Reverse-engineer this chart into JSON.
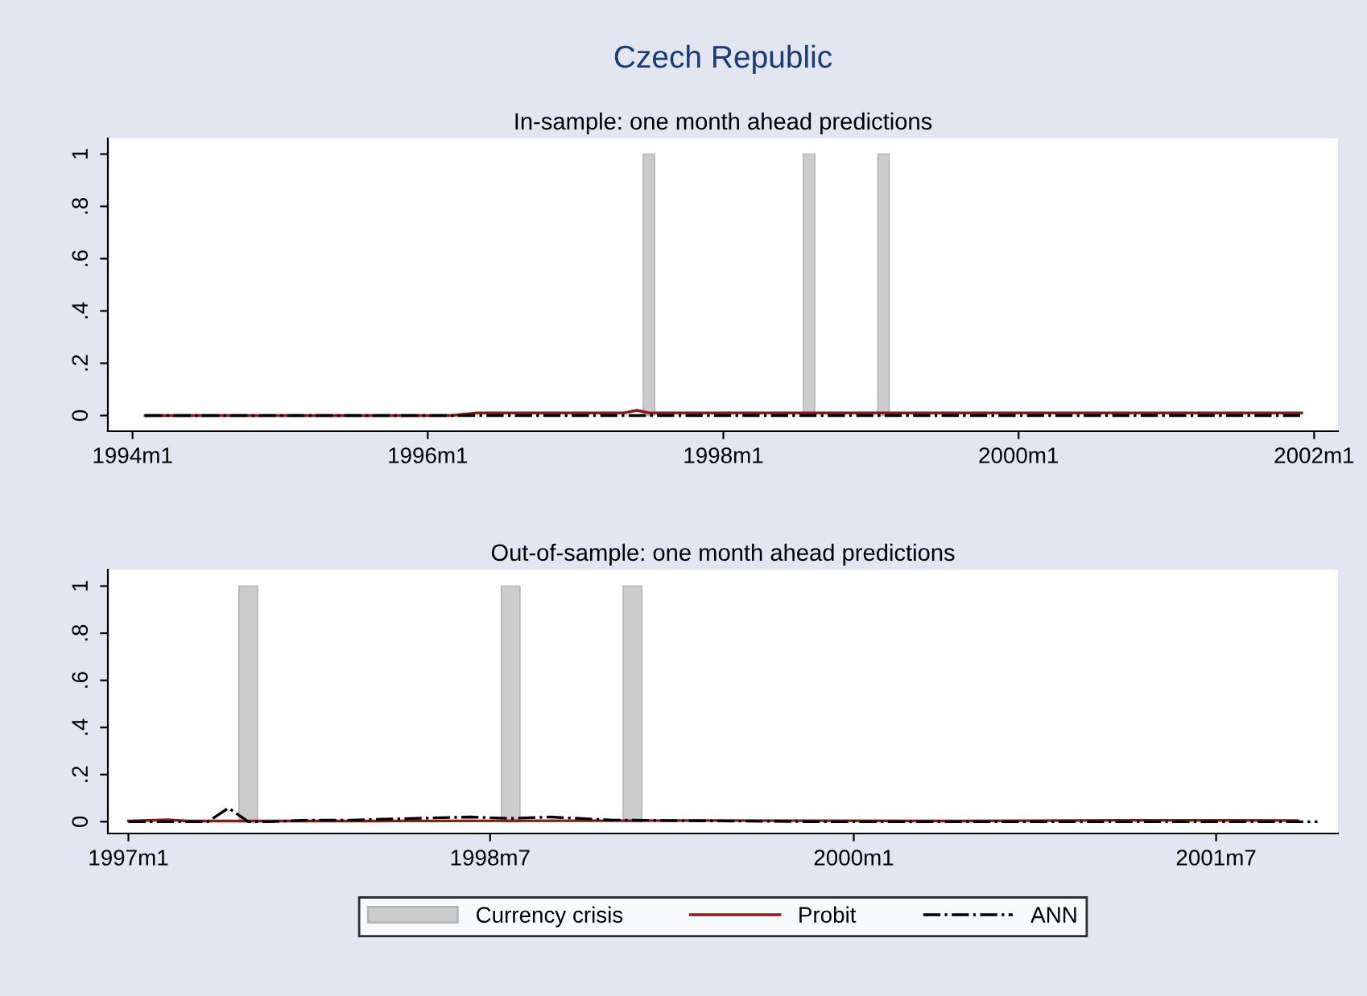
{
  "chart_data": [
    {
      "type": "line",
      "title": "Czech Republic",
      "subtitle": "In-sample: one month ahead predictions",
      "xlim": [
        "1993-11",
        "2002-03"
      ],
      "xticks": [
        {
          "value": "1994-01",
          "label": "1994m1"
        },
        {
          "value": "1996-01",
          "label": "1996m1"
        },
        {
          "value": "1998-01",
          "label": "1998m1"
        },
        {
          "value": "2000-01",
          "label": "2000m1"
        },
        {
          "value": "2002-01",
          "label": "2002m1"
        }
      ],
      "ylim": [
        -0.06,
        1.06
      ],
      "yticks": [
        0,
        {
          "value": 0.2,
          "label": ".2"
        },
        {
          "value": 0.4,
          "label": ".4"
        },
        {
          "value": 0.6,
          "label": ".6"
        },
        {
          "value": 0.8,
          "label": ".8"
        },
        1
      ],
      "series": [
        {
          "type": "bar",
          "color": "#cccccc",
          "x": [
            "1997-07",
            "1998-08",
            "1999-02"
          ],
          "values": [
            1,
            1,
            1
          ]
        },
        {
          "color": "#8b1a1a",
          "line_style": "solid",
          "x": [
            "1994-02",
            "1996-03",
            "1996-05",
            "1997-05",
            "1997-06",
            "1997-07",
            "2001-12"
          ],
          "values": [
            0,
            0,
            0.01,
            0.01,
            0.02,
            0.01,
            0.01
          ]
        },
        {
          "color": "#000000",
          "line_style": "dashdot",
          "x": [
            "1994-02",
            "2001-12"
          ],
          "values": [
            0,
            0
          ]
        }
      ]
    },
    {
      "type": "line",
      "title": "Out-of-sample: one month ahead predictions",
      "legend": "bottom",
      "xlim": [
        "1996-12",
        "2002-01"
      ],
      "xticks": [
        {
          "value": "1997-01",
          "label": "1997m1"
        },
        {
          "value": "1998-07",
          "label": "1998m7"
        },
        {
          "value": "2000-01",
          "label": "2000m1"
        },
        {
          "value": "2001-07",
          "label": "2001m7"
        }
      ],
      "ylim": [
        -0.05,
        1.07
      ],
      "yticks": [
        0,
        {
          "value": 0.2,
          "label": ".2"
        },
        {
          "value": 0.4,
          "label": ".4"
        },
        {
          "value": 0.6,
          "label": ".6"
        },
        {
          "value": 0.8,
          "label": ".8"
        },
        1
      ],
      "series": [
        {
          "type": "bar",
          "name": "Currency crisis",
          "color": "#cccccc",
          "x": [
            "1997-07",
            "1998-08",
            "1999-02"
          ],
          "values": [
            1,
            1,
            1
          ]
        },
        {
          "name": "Probit",
          "color": "#8b1a1a",
          "line_style": "solid",
          "x": [
            "1997-01",
            "1997-03",
            "1997-04",
            "1998-01",
            "1999-06",
            "2000-06",
            "2001-02",
            "2001-11"
          ],
          "values": [
            0.003,
            0.008,
            0.003,
            0.003,
            0.005,
            0.003,
            0.006,
            0.005
          ]
        },
        {
          "name": "ANN",
          "color": "#000000",
          "line_style": "dashdot",
          "x": [
            "1997-01",
            "1997-02",
            "1997-03",
            "1997-05",
            "1997-06",
            "1997-07",
            "1997-08",
            "1997-10",
            "1997-12",
            "1998-06",
            "1998-08",
            "1998-10",
            "1999-01",
            "1999-11",
            "2000-03",
            "2001-01",
            "2001-12"
          ],
          "values": [
            0.0,
            0.0,
            0.0,
            0.0,
            0.058,
            0.0,
            0.0,
            0.007,
            0.007,
            0.02,
            0.014,
            0.02,
            0.007,
            0.0,
            0.0,
            0.0,
            0.0
          ]
        }
      ]
    }
  ]
}
